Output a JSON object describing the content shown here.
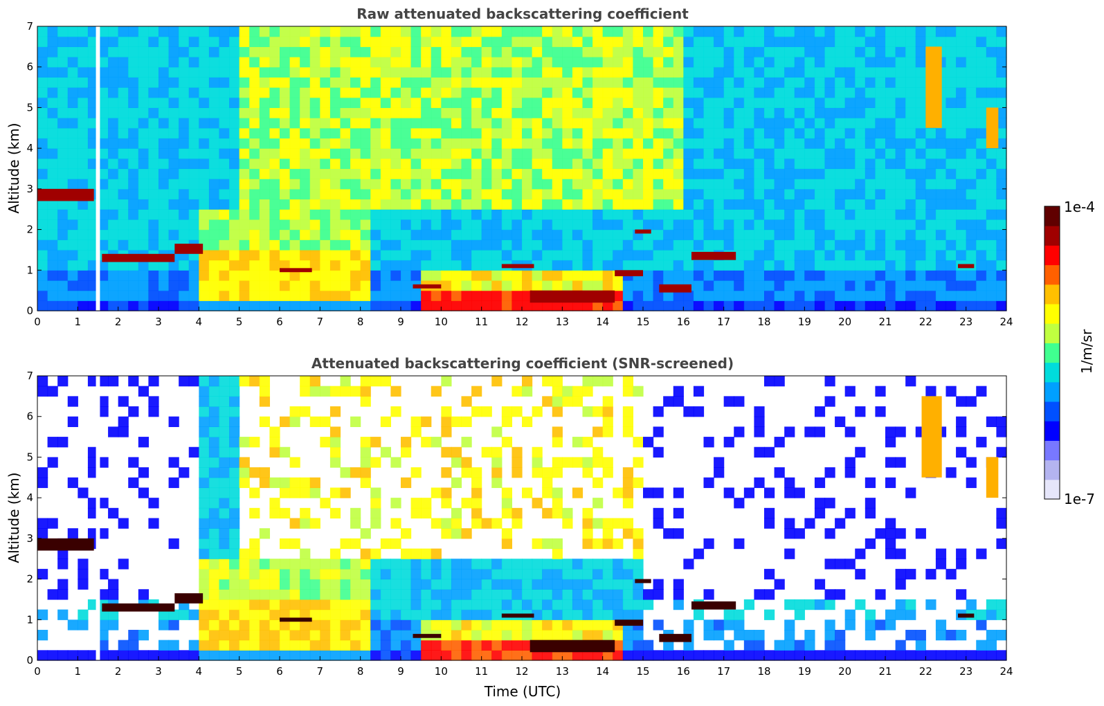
{
  "colors": {
    "colormap": [
      "#e6e6fa",
      "#b4b4f0",
      "#7878ff",
      "#0000ff",
      "#0050ff",
      "#00a0ff",
      "#00dcdc",
      "#40ff90",
      "#c0ff40",
      "#ffff00",
      "#ffc000",
      "#ff6000",
      "#ff0000",
      "#a00000",
      "#600000"
    ],
    "title_color": "#444444"
  },
  "chart_data": [
    {
      "type": "heatmap",
      "title": "Raw attenuated backscattering coefficient",
      "xlabel": "",
      "ylabel": "Altitude (km)",
      "xlim": [
        0,
        24
      ],
      "ylim": [
        0,
        7
      ],
      "xticks": [
        "0",
        "1",
        "2",
        "3",
        "4",
        "5",
        "6",
        "7",
        "8",
        "9",
        "10",
        "11",
        "12",
        "13",
        "14",
        "15",
        "16",
        "17",
        "18",
        "19",
        "20",
        "21",
        "22",
        "23",
        "24"
      ],
      "yticks": [
        "0",
        "1",
        "2",
        "3",
        "4",
        "5",
        "6",
        "7"
      ],
      "screened": false,
      "layers": [
        {
          "x0": 0.0,
          "x1": 1.4,
          "y0": 2.7,
          "y1": 3.0,
          "level": "high"
        },
        {
          "x0": 1.6,
          "x1": 3.4,
          "y0": 1.2,
          "y1": 1.4,
          "level": "high"
        },
        {
          "x0": 3.4,
          "x1": 4.1,
          "y0": 1.4,
          "y1": 1.65,
          "level": "high"
        },
        {
          "x0": 6.0,
          "x1": 6.8,
          "y0": 0.95,
          "y1": 1.05,
          "level": "high"
        },
        {
          "x0": 9.3,
          "x1": 10.0,
          "y0": 0.55,
          "y1": 0.65,
          "level": "high"
        },
        {
          "x0": 11.5,
          "x1": 12.3,
          "y0": 1.05,
          "y1": 1.15,
          "level": "high"
        },
        {
          "x0": 12.2,
          "x1": 14.3,
          "y0": 0.2,
          "y1": 0.5,
          "level": "high"
        },
        {
          "x0": 14.3,
          "x1": 15.0,
          "y0": 0.85,
          "y1": 1.0,
          "level": "high"
        },
        {
          "x0": 14.8,
          "x1": 15.2,
          "y0": 1.9,
          "y1": 2.0,
          "level": "high"
        },
        {
          "x0": 15.4,
          "x1": 16.2,
          "y0": 0.45,
          "y1": 0.65,
          "level": "high"
        },
        {
          "x0": 16.2,
          "x1": 17.3,
          "y0": 1.25,
          "y1": 1.45,
          "level": "high"
        },
        {
          "x0": 22.8,
          "x1": 23.2,
          "y0": 1.05,
          "y1": 1.15,
          "level": "high"
        },
        {
          "x0": 22.0,
          "x1": 22.4,
          "y0": 4.5,
          "y1": 6.5,
          "level": "mid"
        },
        {
          "x0": 23.5,
          "x1": 23.8,
          "y0": 4.0,
          "y1": 5.0,
          "level": "mid"
        }
      ],
      "gaps": [
        {
          "x0": 1.45,
          "x1": 1.55
        }
      ]
    },
    {
      "type": "heatmap",
      "title": "Attenuated backscattering coefficient (SNR-screened)",
      "xlabel": "Time (UTC)",
      "ylabel": "Altitude (km)",
      "xlim": [
        0,
        24
      ],
      "ylim": [
        0,
        7
      ],
      "xticks": [
        "0",
        "1",
        "2",
        "3",
        "4",
        "5",
        "6",
        "7",
        "8",
        "9",
        "10",
        "11",
        "12",
        "13",
        "14",
        "15",
        "16",
        "17",
        "18",
        "19",
        "20",
        "21",
        "22",
        "23",
        "24"
      ],
      "yticks": [
        "0",
        "1",
        "2",
        "3",
        "4",
        "5",
        "6",
        "7"
      ],
      "screened": true,
      "layers": [
        {
          "x0": 0.0,
          "x1": 1.4,
          "y0": 2.7,
          "y1": 3.0,
          "level": "high"
        },
        {
          "x0": 1.6,
          "x1": 3.4,
          "y0": 1.2,
          "y1": 1.4,
          "level": "high"
        },
        {
          "x0": 3.4,
          "x1": 4.1,
          "y0": 1.4,
          "y1": 1.65,
          "level": "high"
        },
        {
          "x0": 6.0,
          "x1": 6.8,
          "y0": 0.95,
          "y1": 1.05,
          "level": "high"
        },
        {
          "x0": 9.3,
          "x1": 10.0,
          "y0": 0.55,
          "y1": 0.65,
          "level": "high"
        },
        {
          "x0": 11.5,
          "x1": 12.3,
          "y0": 1.05,
          "y1": 1.15,
          "level": "high"
        },
        {
          "x0": 12.2,
          "x1": 14.3,
          "y0": 0.2,
          "y1": 0.5,
          "level": "high"
        },
        {
          "x0": 14.3,
          "x1": 15.0,
          "y0": 0.85,
          "y1": 1.0,
          "level": "high"
        },
        {
          "x0": 14.8,
          "x1": 15.2,
          "y0": 1.9,
          "y1": 2.0,
          "level": "high"
        },
        {
          "x0": 15.4,
          "x1": 16.2,
          "y0": 0.45,
          "y1": 0.65,
          "level": "high"
        },
        {
          "x0": 16.2,
          "x1": 17.3,
          "y0": 1.25,
          "y1": 1.45,
          "level": "high"
        },
        {
          "x0": 22.8,
          "x1": 23.2,
          "y0": 1.05,
          "y1": 1.15,
          "level": "high"
        },
        {
          "x0": 21.9,
          "x1": 22.4,
          "y0": 4.5,
          "y1": 6.5,
          "level": "mid"
        },
        {
          "x0": 23.5,
          "x1": 23.8,
          "y0": 4.0,
          "y1": 5.0,
          "level": "mid"
        }
      ],
      "gaps": [
        {
          "x0": 1.45,
          "x1": 1.55
        }
      ]
    }
  ],
  "colorbar": {
    "label": "1/m/sr",
    "max_label": "1e-4",
    "min_label": "1e-7",
    "scale": "log"
  }
}
